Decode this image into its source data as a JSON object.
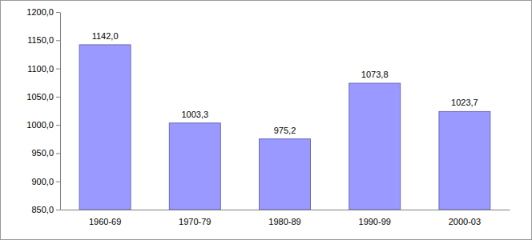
{
  "chart_data": {
    "type": "bar",
    "categories": [
      "1960-69",
      "1970-79",
      "1980-89",
      "1990-99",
      "2000-03"
    ],
    "values": [
      1142.0,
      1003.3,
      975.2,
      1073.8,
      1023.7
    ],
    "value_labels": [
      "1142,0",
      "1003,3",
      "975,2",
      "1073,8",
      "1023,7"
    ],
    "color": "#9999ff",
    "ylim": [
      850,
      1200
    ],
    "yticks": [
      {
        "value": 850,
        "label": "850,0"
      },
      {
        "value": 900,
        "label": "900,0"
      },
      {
        "value": 950,
        "label": "950,0"
      },
      {
        "value": 1000,
        "label": "1000,0"
      },
      {
        "value": 1050,
        "label": "1050,0"
      },
      {
        "value": 1100,
        "label": "1100,0"
      },
      {
        "value": 1150,
        "label": "1150,0"
      },
      {
        "value": 1200,
        "label": "1200,0"
      }
    ],
    "grid": false,
    "data_labels": true
  }
}
